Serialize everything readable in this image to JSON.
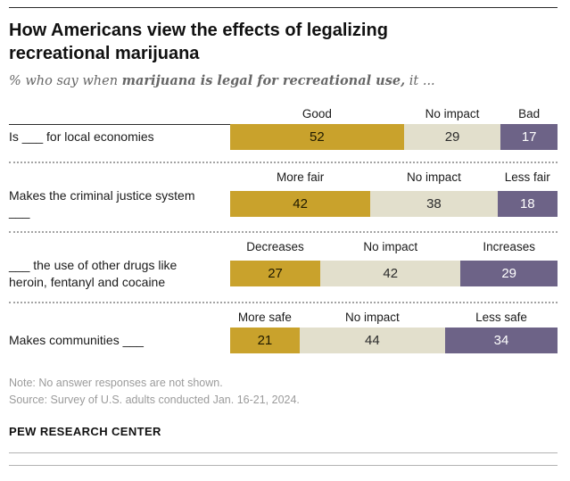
{
  "header": {
    "title": "How Americans view the effects of legalizing recreational marijuana",
    "subtitle_prefix": "% who say when ",
    "subtitle_bold": "marijuana is legal for recreational use,",
    "subtitle_suffix": " it ..."
  },
  "chart_data": {
    "type": "bar",
    "orientation": "horizontal-stacked",
    "unit": "%",
    "legend_position": "per-row-headers",
    "colors": {
      "gold": {
        "bg": "#C9A22C",
        "text": "#1f1a00"
      },
      "beige": {
        "bg": "#E2DFCC",
        "text": "#2b2b2b"
      },
      "purple": {
        "bg": "#6D6387",
        "text": "#ffffff"
      }
    },
    "rows": [
      {
        "label": "Is ___ for local economies",
        "segments": [
          {
            "label": "Good",
            "value": 52,
            "fill": "gold"
          },
          {
            "label": "No impact",
            "value": 29,
            "fill": "beige"
          },
          {
            "label": "Bad",
            "value": 17,
            "fill": "purple"
          }
        ]
      },
      {
        "label": "Makes the criminal justice system ___",
        "segments": [
          {
            "label": "More fair",
            "value": 42,
            "fill": "gold"
          },
          {
            "label": "No impact",
            "value": 38,
            "fill": "beige"
          },
          {
            "label": "Less fair",
            "value": 18,
            "fill": "purple"
          }
        ]
      },
      {
        "label": "___ the use of other drugs like heroin, fentanyl and cocaine",
        "segments": [
          {
            "label": "Decreases",
            "value": 27,
            "fill": "gold"
          },
          {
            "label": "No impact",
            "value": 42,
            "fill": "beige"
          },
          {
            "label": "Increases",
            "value": 29,
            "fill": "purple"
          }
        ]
      },
      {
        "label": "Makes communities ___",
        "segments": [
          {
            "label": "More safe",
            "value": 21,
            "fill": "gold"
          },
          {
            "label": "No impact",
            "value": 44,
            "fill": "beige"
          },
          {
            "label": "Less safe",
            "value": 34,
            "fill": "purple"
          }
        ]
      }
    ]
  },
  "footer": {
    "note": "Note: No answer responses are not shown.",
    "source": "Source: Survey of U.S. adults conducted Jan. 16-21, 2024.",
    "brand": "PEW RESEARCH CENTER"
  }
}
